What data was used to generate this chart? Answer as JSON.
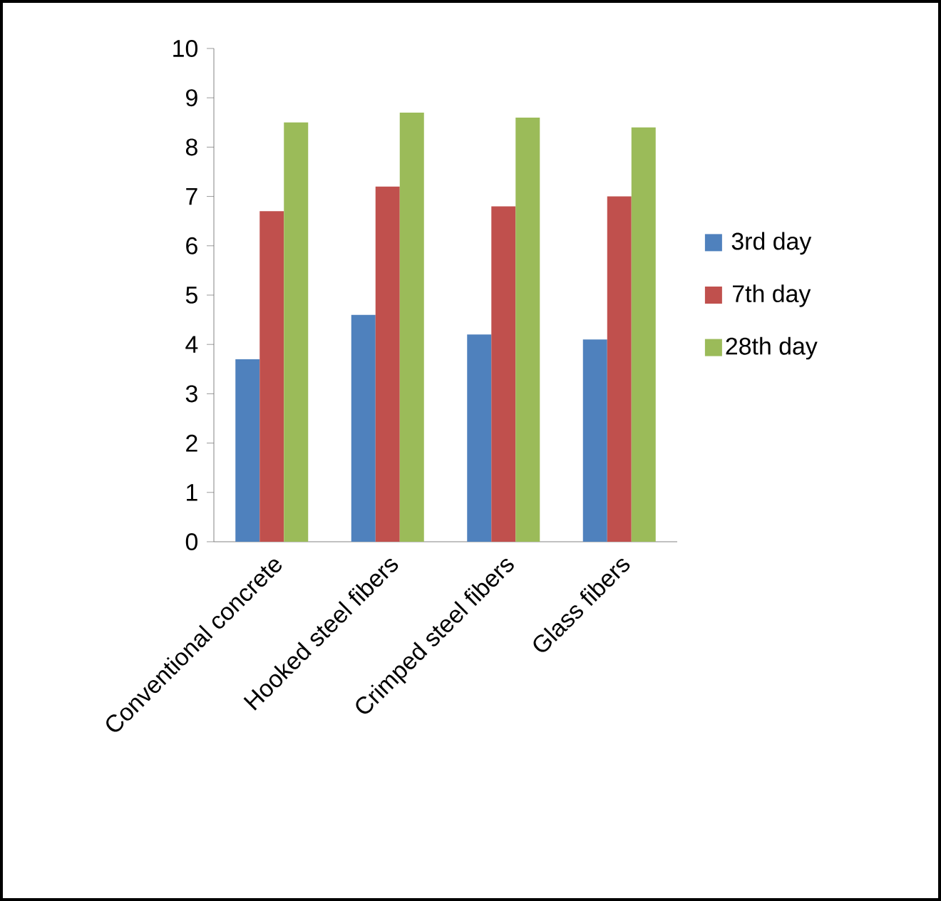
{
  "chart_data": {
    "type": "bar",
    "categories": [
      "Conventional concrete",
      "Hooked steel fibers",
      "Crimped steel fibers",
      "Glass fibers"
    ],
    "series": [
      {
        "name": "3rd day",
        "color": "#4f81bd",
        "values": [
          3.7,
          4.6,
          4.2,
          4.1
        ]
      },
      {
        "name": "7th day",
        "color": "#c0504d",
        "values": [
          6.7,
          7.2,
          6.8,
          7.0
        ]
      },
      {
        "name": "28th day",
        "color": "#9bbb59",
        "values": [
          8.5,
          8.7,
          8.6,
          8.4
        ]
      }
    ],
    "ylim": [
      0,
      10
    ],
    "yticks": [
      0,
      1,
      2,
      3,
      4,
      5,
      6,
      7,
      8,
      9,
      10
    ],
    "grid": false,
    "legend": "right"
  }
}
